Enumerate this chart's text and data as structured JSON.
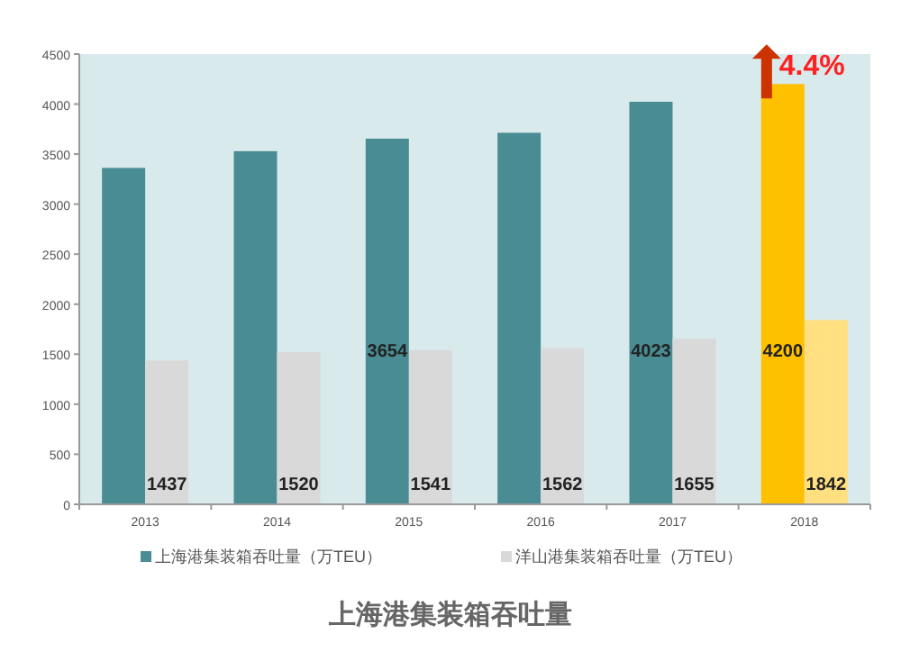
{
  "chart_data": {
    "type": "bar",
    "title": "上海港集装箱吞吐量",
    "categories": [
      "2013",
      "2014",
      "2015",
      "2016",
      "2017",
      "2018"
    ],
    "series": [
      {
        "name": "上海港集装箱吞吐量（万TEU）",
        "color": "#4a8c94",
        "colors": [
          "#4a8c94",
          "#4a8c94",
          "#4a8c94",
          "#4a8c94",
          "#4a8c94",
          "#ffc000"
        ],
        "values": [
          3362,
          3529,
          3654,
          3713,
          4023,
          4200
        ],
        "value_labels": [
          null,
          null,
          "3654",
          null,
          "4023",
          "4200"
        ]
      },
      {
        "name": "洋山港集装箱吞吐量（万TEU）",
        "color": "#d9d9d9",
        "colors": [
          "#d9d9d9",
          "#d9d9d9",
          "#d9d9d9",
          "#d9d9d9",
          "#d9d9d9",
          "#ffdf80"
        ],
        "values": [
          1437,
          1520,
          1541,
          1562,
          1655,
          1842
        ],
        "value_labels": [
          "1437",
          "1520",
          "1541",
          "1562",
          "1655",
          "1842"
        ]
      }
    ],
    "annotations": [
      {
        "text": "4.4%",
        "x": "2018",
        "y": 4200
      }
    ],
    "ylim": [
      0,
      4500
    ],
    "yticks": [
      0,
      500,
      1000,
      1500,
      2000,
      2500,
      3000,
      3500,
      4000,
      4500
    ],
    "grid": false,
    "legend": "bottom"
  }
}
